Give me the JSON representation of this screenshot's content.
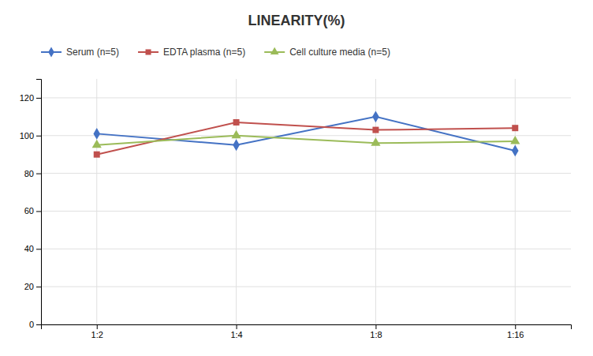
{
  "chart_data": {
    "type": "line",
    "title": "LINEARITY(%)",
    "categories": [
      "1:2",
      "1:4",
      "1:8",
      "1:16"
    ],
    "series": [
      {
        "name": "Serum (n=5)",
        "color": "#4472C4",
        "marker": "diamond",
        "values": [
          101,
          95,
          110,
          92
        ]
      },
      {
        "name": "EDTA plasma (n=5)",
        "color": "#C0504D",
        "marker": "square",
        "values": [
          90,
          107,
          103,
          104
        ]
      },
      {
        "name": "Cell culture media (n=5)",
        "color": "#9BBB59",
        "marker": "triangle",
        "values": [
          95,
          100,
          96,
          97
        ]
      }
    ],
    "ylim": [
      0,
      130
    ],
    "yticks": [
      0,
      20,
      40,
      60,
      80,
      100,
      120
    ],
    "grid": true,
    "legend": "top-left"
  }
}
